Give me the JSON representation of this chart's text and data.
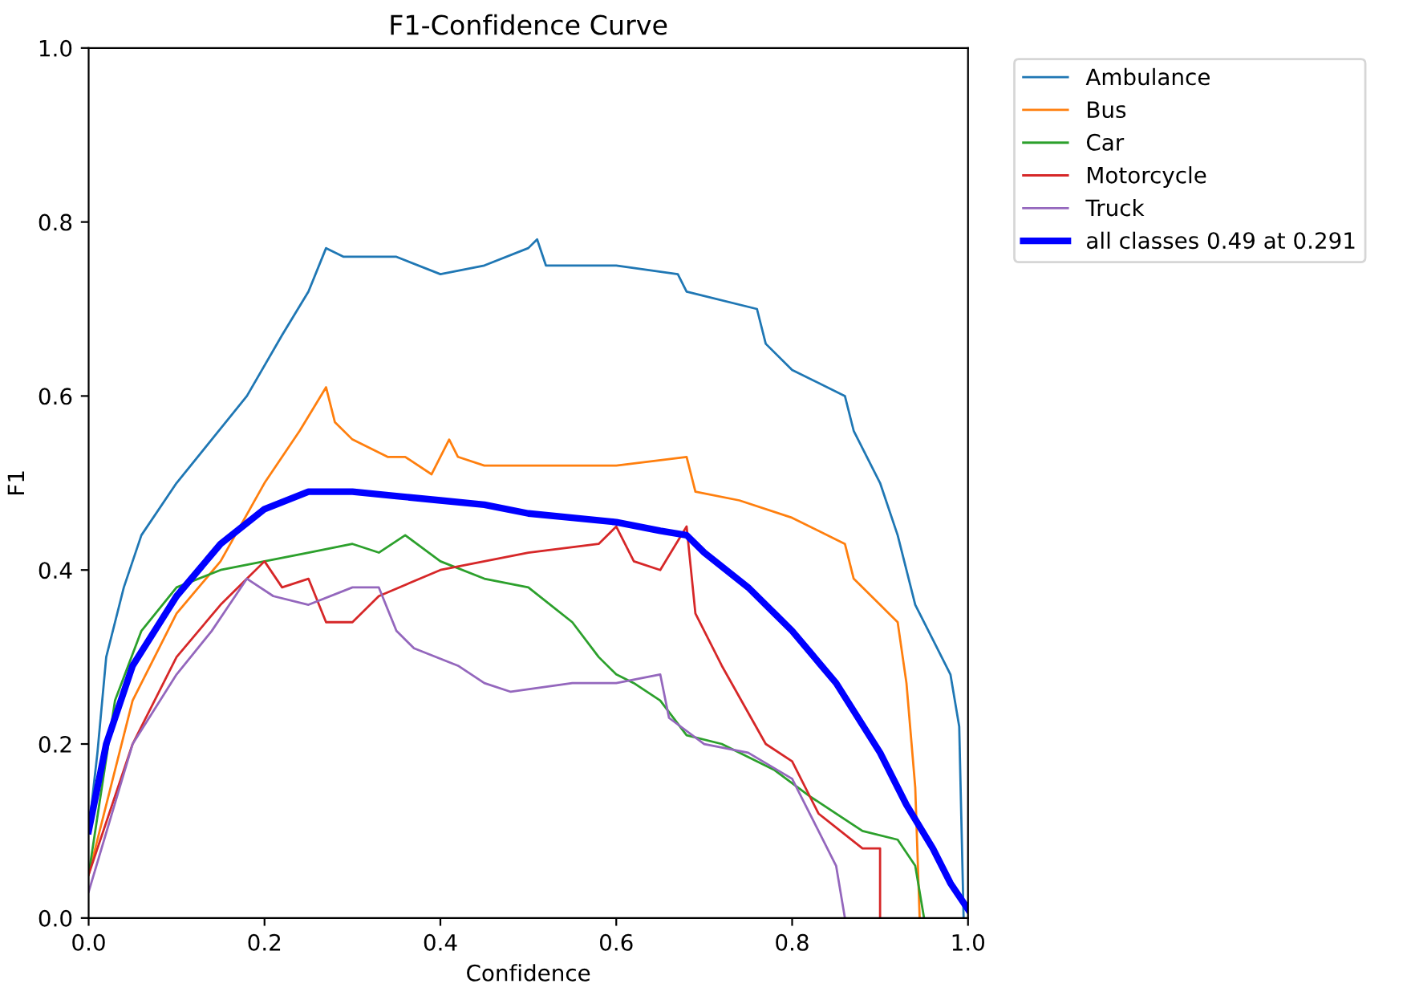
{
  "chart_data": {
    "type": "line",
    "title": "F1-Confidence Curve",
    "xlabel": "Confidence",
    "ylabel": "F1",
    "xlim": [
      0,
      1
    ],
    "ylim": [
      0,
      1
    ],
    "xticks": [
      {
        "value": 0,
        "label": "0.0"
      },
      {
        "value": 0.2,
        "label": "0.2"
      },
      {
        "value": 0.4,
        "label": "0.4"
      },
      {
        "value": 0.6,
        "label": "0.6"
      },
      {
        "value": 0.8,
        "label": "0.8"
      },
      {
        "value": 1,
        "label": "1.0"
      }
    ],
    "yticks": [
      {
        "value": 0,
        "label": "0.0"
      },
      {
        "value": 0.2,
        "label": "0.2"
      },
      {
        "value": 0.4,
        "label": "0.4"
      },
      {
        "value": 0.6,
        "label": "0.6"
      },
      {
        "value": 0.8,
        "label": "0.8"
      },
      {
        "value": 1,
        "label": "1.0"
      }
    ],
    "grid": false,
    "legend": "top right",
    "line_style": "solid",
    "series": [
      {
        "name": "Ambulance",
        "color": "#1f77b4",
        "x": [
          0,
          0.01,
          0.02,
          0.04,
          0.06,
          0.1,
          0.14,
          0.18,
          0.22,
          0.25,
          0.27,
          0.29,
          0.35,
          0.4,
          0.45,
          0.5,
          0.51,
          0.52,
          0.6,
          0.67,
          0.68,
          0.76,
          0.77,
          0.8,
          0.86,
          0.87,
          0.9,
          0.92,
          0.94,
          0.96,
          0.98,
          0.99,
          0.995
        ],
        "values": [
          0.1,
          0.19,
          0.3,
          0.38,
          0.44,
          0.5,
          0.55,
          0.6,
          0.67,
          0.72,
          0.77,
          0.76,
          0.76,
          0.74,
          0.75,
          0.77,
          0.78,
          0.75,
          0.75,
          0.74,
          0.72,
          0.7,
          0.66,
          0.63,
          0.6,
          0.56,
          0.5,
          0.44,
          0.36,
          0.32,
          0.28,
          0.22,
          0.0
        ]
      },
      {
        "name": "Bus",
        "color": "#ff7f0e",
        "x": [
          0,
          0.05,
          0.1,
          0.15,
          0.2,
          0.24,
          0.27,
          0.28,
          0.3,
          0.34,
          0.36,
          0.39,
          0.41,
          0.42,
          0.45,
          0.6,
          0.68,
          0.69,
          0.74,
          0.8,
          0.86,
          0.87,
          0.9,
          0.92,
          0.93,
          0.94,
          0.945
        ],
        "values": [
          0.05,
          0.25,
          0.35,
          0.41,
          0.5,
          0.56,
          0.61,
          0.57,
          0.55,
          0.53,
          0.53,
          0.51,
          0.55,
          0.53,
          0.52,
          0.52,
          0.53,
          0.49,
          0.48,
          0.46,
          0.43,
          0.39,
          0.36,
          0.34,
          0.27,
          0.15,
          0.0
        ]
      },
      {
        "name": "Car",
        "color": "#2ca02c",
        "x": [
          0,
          0.03,
          0.06,
          0.1,
          0.15,
          0.2,
          0.25,
          0.3,
          0.33,
          0.36,
          0.4,
          0.45,
          0.5,
          0.55,
          0.58,
          0.6,
          0.62,
          0.65,
          0.68,
          0.72,
          0.78,
          0.82,
          0.88,
          0.92,
          0.94,
          0.95
        ],
        "values": [
          0.05,
          0.25,
          0.33,
          0.38,
          0.4,
          0.41,
          0.42,
          0.43,
          0.42,
          0.44,
          0.41,
          0.39,
          0.38,
          0.34,
          0.3,
          0.28,
          0.27,
          0.25,
          0.21,
          0.2,
          0.17,
          0.14,
          0.1,
          0.09,
          0.06,
          0.0
        ]
      },
      {
        "name": "Motorcycle",
        "color": "#d62728",
        "x": [
          0,
          0.05,
          0.1,
          0.15,
          0.18,
          0.2,
          0.22,
          0.25,
          0.27,
          0.3,
          0.33,
          0.4,
          0.5,
          0.58,
          0.6,
          0.62,
          0.65,
          0.68,
          0.69,
          0.72,
          0.77,
          0.8,
          0.83,
          0.88,
          0.9,
          0.9
        ],
        "values": [
          0.05,
          0.2,
          0.3,
          0.36,
          0.39,
          0.41,
          0.38,
          0.39,
          0.34,
          0.34,
          0.37,
          0.4,
          0.42,
          0.43,
          0.45,
          0.41,
          0.4,
          0.45,
          0.35,
          0.29,
          0.2,
          0.18,
          0.12,
          0.08,
          0.08,
          0.0
        ]
      },
      {
        "name": "Truck",
        "color": "#9467bd",
        "x": [
          0,
          0.05,
          0.1,
          0.14,
          0.18,
          0.21,
          0.25,
          0.3,
          0.33,
          0.35,
          0.37,
          0.42,
          0.45,
          0.48,
          0.55,
          0.6,
          0.65,
          0.66,
          0.7,
          0.75,
          0.8,
          0.83,
          0.85,
          0.86
        ],
        "values": [
          0.03,
          0.2,
          0.28,
          0.33,
          0.39,
          0.37,
          0.36,
          0.38,
          0.38,
          0.33,
          0.31,
          0.29,
          0.27,
          0.26,
          0.27,
          0.27,
          0.28,
          0.23,
          0.2,
          0.19,
          0.16,
          0.1,
          0.06,
          0.0
        ]
      },
      {
        "name": "all classes 0.49 at 0.291",
        "color": "#0000ff",
        "x": [
          0,
          0.02,
          0.05,
          0.1,
          0.15,
          0.2,
          0.25,
          0.3,
          0.35,
          0.4,
          0.45,
          0.5,
          0.55,
          0.6,
          0.65,
          0.68,
          0.7,
          0.75,
          0.8,
          0.85,
          0.9,
          0.93,
          0.96,
          0.98,
          1.0
        ],
        "values": [
          0.1,
          0.2,
          0.29,
          0.37,
          0.43,
          0.47,
          0.49,
          0.49,
          0.485,
          0.48,
          0.475,
          0.465,
          0.46,
          0.455,
          0.445,
          0.44,
          0.42,
          0.38,
          0.33,
          0.27,
          0.19,
          0.13,
          0.08,
          0.04,
          0.01
        ]
      }
    ]
  }
}
